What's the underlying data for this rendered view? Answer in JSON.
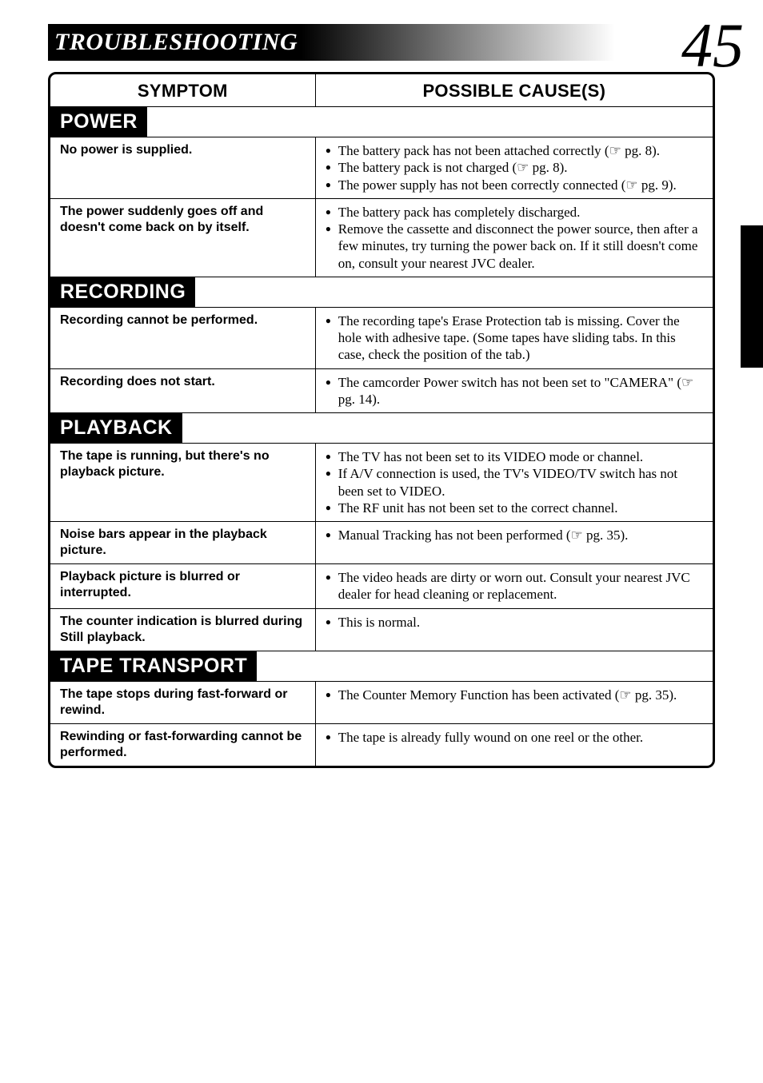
{
  "page": {
    "title": "TROUBLESHOOTING",
    "number": "45"
  },
  "headers": {
    "symptom": "SYMPTOM",
    "cause": "POSSIBLE CAUSE(S)"
  },
  "sections": [
    {
      "label": "POWER",
      "rows": [
        {
          "symptom": "No power is supplied.",
          "causes": [
            "The battery pack has not been attached correctly (☞ pg. 8).",
            "The battery pack is not charged (☞ pg. 8).",
            "The power supply has not been correctly connected (☞ pg. 9)."
          ]
        },
        {
          "symptom": "The power suddenly goes off and doesn't come back on by itself.",
          "causes": [
            "The battery pack has completely discharged.",
            "Remove the cassette and disconnect the power source, then after a few minutes, try turning the power back on. If it still doesn't come on, consult your nearest JVC dealer."
          ]
        }
      ]
    },
    {
      "label": "RECORDING",
      "rows": [
        {
          "symptom": "Recording cannot be performed.",
          "causes": [
            "The recording tape's Erase Protection tab is missing. Cover the hole with adhesive tape. (Some tapes have sliding tabs. In this case, check the position of the tab.)"
          ]
        },
        {
          "symptom": "Recording does not start.",
          "causes": [
            "The camcorder Power switch has not been set to \"CAMERA\" (☞ pg. 14)."
          ]
        }
      ]
    },
    {
      "label": "PLAYBACK",
      "rows": [
        {
          "symptom": "The tape is running, but there's no playback picture.",
          "causes": [
            "The TV has not been set to its VIDEO mode or channel.",
            "If A/V connection is used, the TV's VIDEO/TV switch has not been set to VIDEO.",
            "The RF unit has not been set to the correct channel."
          ]
        },
        {
          "symptom": "Noise bars appear in the playback picture.",
          "causes": [
            "Manual Tracking has not been performed (☞ pg. 35)."
          ]
        },
        {
          "symptom": "Playback picture is blurred or interrupted.",
          "causes": [
            "The video heads are dirty or worn out. Consult your nearest JVC dealer for head cleaning or replacement."
          ]
        },
        {
          "symptom": "The counter indication is blurred during Still playback.",
          "causes": [
            "This is normal."
          ]
        }
      ]
    },
    {
      "label": "TAPE TRANSPORT",
      "rows": [
        {
          "symptom": "The tape stops during fast-forward or rewind.",
          "causes": [
            "The Counter Memory Function has been activated (☞ pg. 35)."
          ]
        },
        {
          "symptom": "Rewinding or fast-forwarding cannot be performed.",
          "causes": [
            "The tape is already fully wound on one reel or the other."
          ]
        }
      ]
    }
  ]
}
